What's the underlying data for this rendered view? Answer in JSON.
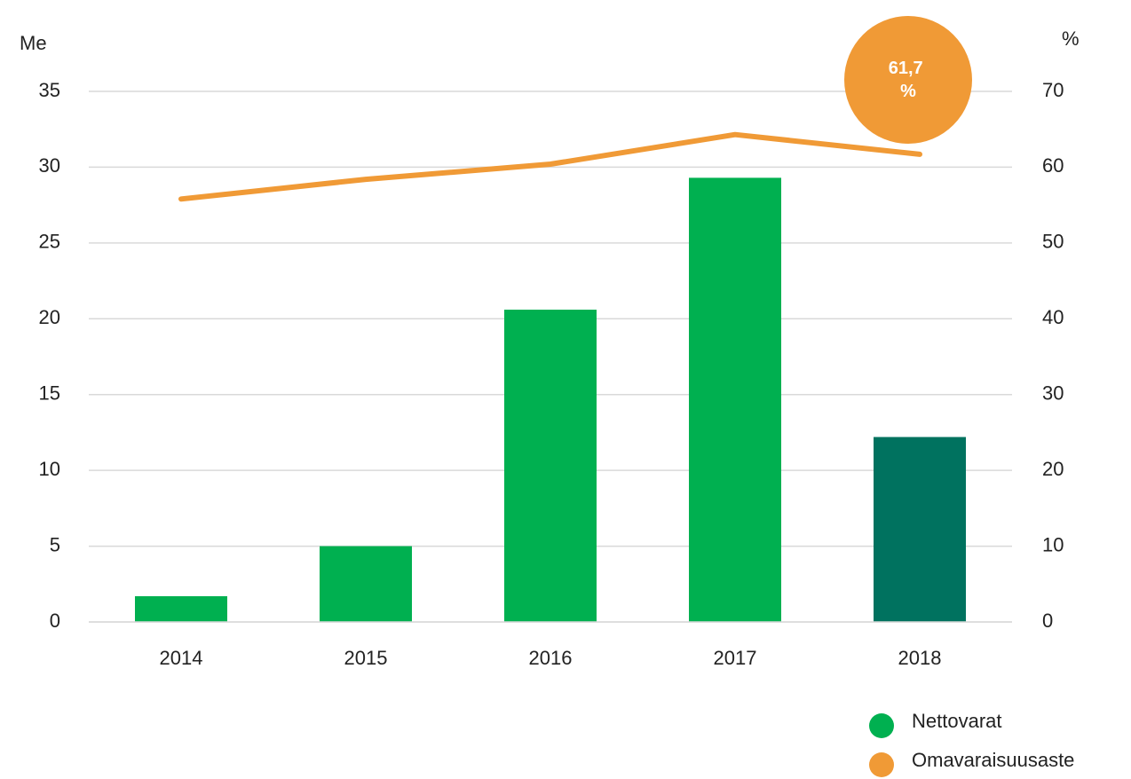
{
  "chart_data": {
    "type": "bar-line",
    "y_label": "Me",
    "y2_label": "%",
    "categories": [
      "2014",
      "2015",
      "2016",
      "2017",
      "2018"
    ],
    "series": [
      {
        "name": "Nettovarat",
        "type": "bar",
        "color": "#00b050",
        "colors": [
          "#00b050",
          "#00b050",
          "#00b050",
          "#00b050",
          "#00725f"
        ],
        "values": [
          1.7,
          5.0,
          20.6,
          29.3,
          12.2
        ]
      },
      {
        "name": "Omavaraisuusaste",
        "type": "line",
        "axis": "y2",
        "color": "#f09a36",
        "values": [
          55.8,
          58.4,
          60.4,
          64.3,
          61.7
        ],
        "value_labels": [
          null,
          null,
          null,
          null,
          "61,7 %"
        ]
      }
    ],
    "ylim": [
      0,
      35
    ],
    "yticks": [
      0,
      5,
      10,
      15,
      20,
      25,
      30,
      35
    ],
    "y2lim": [
      0,
      70
    ],
    "y2ticks": [
      0,
      10,
      20,
      30,
      40,
      50,
      60,
      70
    ],
    "grid": true,
    "legend": "bottom-right"
  }
}
